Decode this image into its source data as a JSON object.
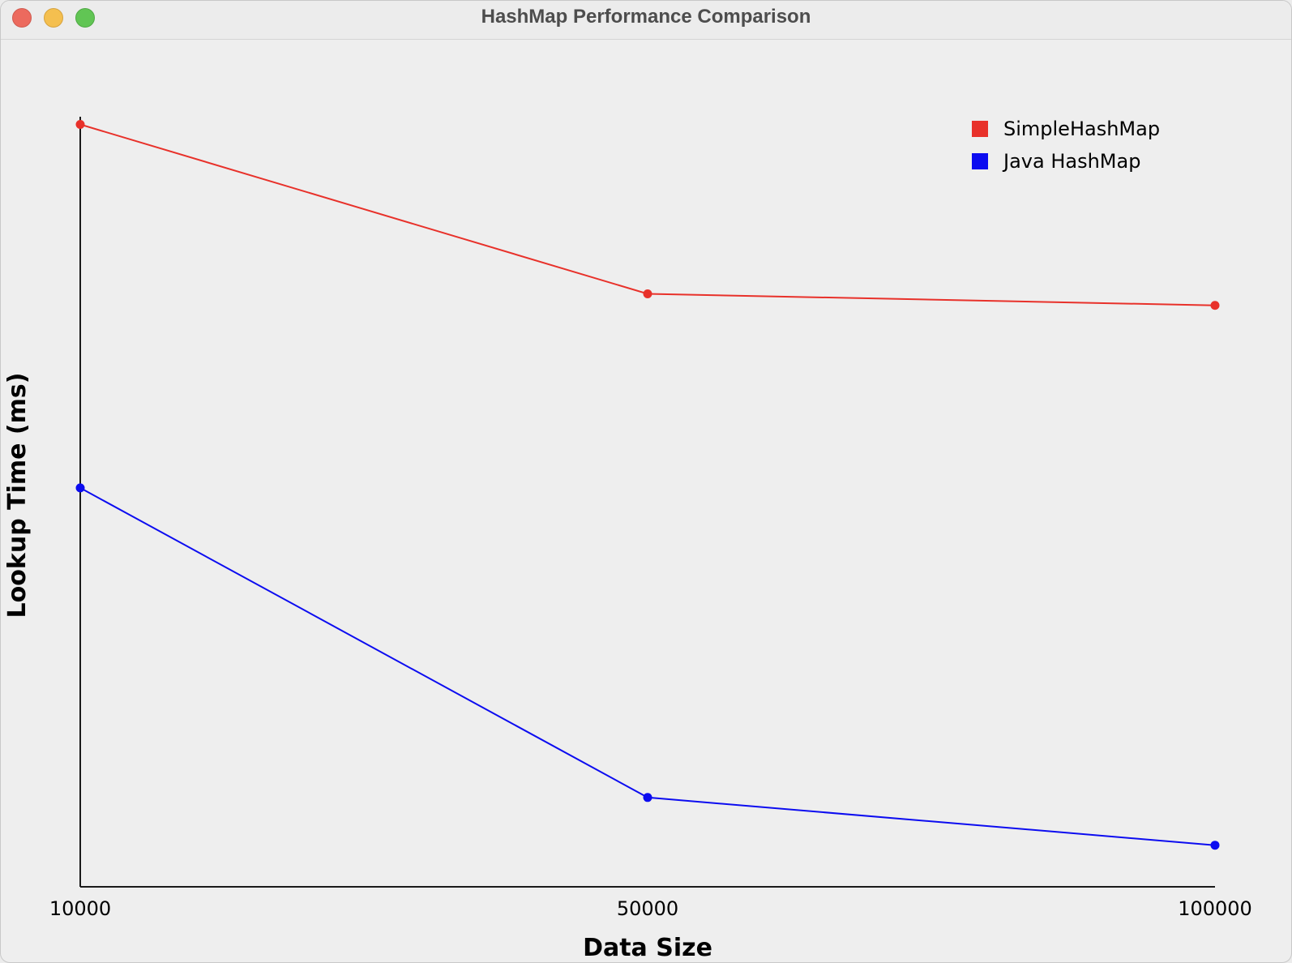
{
  "window": {
    "title": "HashMap Performance Comparison",
    "controls": [
      "close",
      "minimize",
      "zoom"
    ]
  },
  "colors": {
    "simple": "#e8312a",
    "java": "#0c0cf0",
    "axis": "#1a1a1a",
    "background": "#eeeeee"
  },
  "chart_data": {
    "type": "line",
    "title": "",
    "xlabel": "Data Size",
    "ylabel": "Lookup Time (ms)",
    "x": [
      10000,
      50000,
      100000
    ],
    "x_tick_labels": [
      "10000",
      "50000",
      "100000"
    ],
    "y_ticks_shown": false,
    "grid": false,
    "legend_position": "top-right",
    "ylim": [
      0,
      1
    ],
    "series": [
      {
        "name": "SimpleHashMap",
        "color": "#e8312a",
        "values": [
          0.99,
          0.77,
          0.755
        ]
      },
      {
        "name": "Java HashMap",
        "color": "#0c0cf0",
        "values": [
          0.518,
          0.116,
          0.054
        ]
      }
    ]
  }
}
